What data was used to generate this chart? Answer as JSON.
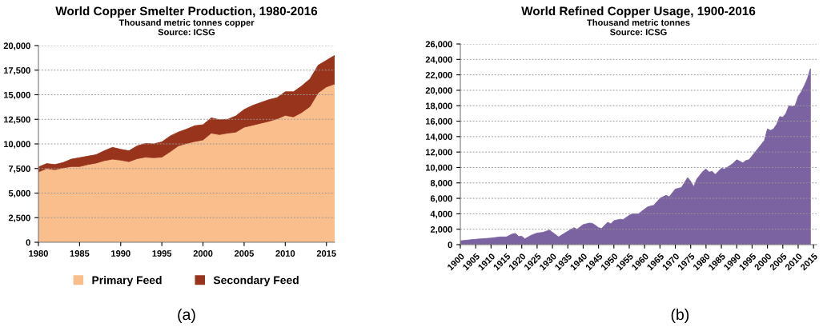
{
  "chart_data": [
    {
      "type": "area",
      "stacked": true,
      "title": "World Copper Smelter Production, 1980-2016",
      "subtitle": "Thousand metric tonnes copper\nSource: ICSG",
      "annotations": [
        "(a)"
      ],
      "x": [
        1980,
        1981,
        1982,
        1983,
        1984,
        1985,
        1986,
        1987,
        1988,
        1989,
        1990,
        1991,
        1992,
        1993,
        1994,
        1995,
        1996,
        1997,
        1998,
        1999,
        2000,
        2001,
        2002,
        2003,
        2004,
        2005,
        2006,
        2007,
        2008,
        2009,
        2010,
        2011,
        2012,
        2013,
        2014,
        2015,
        2016
      ],
      "series": [
        {
          "name": "Primary Feed",
          "color": "#f9be8c",
          "values": [
            7150,
            7500,
            7380,
            7570,
            7700,
            7700,
            7900,
            8050,
            8300,
            8450,
            8350,
            8200,
            8500,
            8650,
            8600,
            8650,
            9200,
            9800,
            10050,
            10250,
            10400,
            11100,
            10950,
            11100,
            11200,
            11700,
            11900,
            12100,
            12300,
            12550,
            12900,
            12750,
            13200,
            13800,
            15200,
            15800,
            16100
          ]
        },
        {
          "name": "Secondary Feed",
          "color": "#98331c",
          "values": [
            500,
            500,
            520,
            530,
            750,
            900,
            850,
            850,
            1000,
            1200,
            1100,
            1100,
            1300,
            1400,
            1400,
            1550,
            1600,
            1400,
            1450,
            1600,
            1550,
            1550,
            1500,
            1400,
            1650,
            1800,
            2000,
            2100,
            2200,
            2150,
            2400,
            2550,
            2700,
            2800,
            2800,
            2700,
            2900
          ]
        }
      ],
      "xlim": [
        1980,
        2016
      ],
      "xticks": [
        1980,
        1985,
        1990,
        1995,
        2000,
        2005,
        2010,
        2015
      ],
      "ylim": [
        0,
        20000
      ],
      "yticks": [
        {
          "value": 0,
          "label": "0"
        },
        {
          "value": 2500,
          "label": "2,500"
        },
        {
          "value": 5000,
          "label": "5,000"
        },
        {
          "value": 7500,
          "label": "7,500"
        },
        {
          "value": 10000,
          "label": "10,000"
        },
        {
          "value": 12500,
          "label": "12,500"
        },
        {
          "value": 15000,
          "label": "15,000"
        },
        {
          "value": 17500,
          "label": "17,500"
        },
        {
          "value": 20000,
          "label": "20,000"
        }
      ],
      "grid": "y",
      "legend": "bottom"
    },
    {
      "type": "area",
      "title": "World Refined Copper Usage, 1900-2016",
      "subtitle": "Thousand metric tonnes\nSource: ICSG",
      "annotations": [
        "(b)"
      ],
      "x": [
        1900,
        1905,
        1910,
        1913,
        1915,
        1917,
        1918,
        1919,
        1920,
        1921,
        1923,
        1925,
        1927,
        1929,
        1932,
        1934,
        1937,
        1938,
        1940,
        1942,
        1943,
        1944,
        1945,
        1946,
        1948,
        1949,
        1950,
        1952,
        1953,
        1955,
        1956,
        1958,
        1959,
        1961,
        1963,
        1965,
        1967,
        1968,
        1970,
        1972,
        1974,
        1975,
        1976,
        1977,
        1979,
        1980,
        1981,
        1982,
        1983,
        1985,
        1986,
        1988,
        1989,
        1990,
        1991,
        1992,
        1993,
        1994,
        1996,
        1998,
        1999,
        2000,
        2001,
        2002,
        2003,
        2004,
        2005,
        2006,
        2007,
        2008,
        2009,
        2010,
        2011,
        2012,
        2013,
        2014
      ],
      "series": [
        {
          "color": "#7b62a0",
          "values": [
            500,
            700,
            850,
            1000,
            1000,
            1400,
            1450,
            1050,
            1100,
            750,
            1200,
            1500,
            1600,
            1900,
            1000,
            1500,
            2200,
            2000,
            2600,
            2800,
            2750,
            2500,
            2200,
            2100,
            2900,
            2700,
            3100,
            3300,
            3250,
            3800,
            4000,
            4000,
            4300,
            4900,
            5100,
            6000,
            6400,
            6200,
            7200,
            7400,
            8700,
            8200,
            7500,
            8500,
            9500,
            9800,
            9400,
            9500,
            9100,
            9900,
            9800,
            10300,
            10600,
            11000,
            10800,
            10600,
            10900,
            11000,
            12000,
            13000,
            13500,
            15000,
            14800,
            15000,
            15600,
            16600,
            16500,
            17000,
            18000,
            17900,
            18000,
            19200,
            19800,
            20600,
            21500,
            22800
          ]
        }
      ],
      "xlim": [
        1900,
        2016
      ],
      "xticks": [
        1900,
        1905,
        1910,
        1915,
        1920,
        1925,
        1930,
        1935,
        1940,
        1945,
        1950,
        1955,
        1960,
        1965,
        1970,
        1975,
        1980,
        1985,
        1990,
        1995,
        2000,
        2005,
        2010,
        2015
      ],
      "ylim": [
        0,
        26000
      ],
      "yticks": [
        {
          "value": 0,
          "label": "0"
        },
        {
          "value": 2000,
          "label": "2,000"
        },
        {
          "value": 4000,
          "label": "4,000"
        },
        {
          "value": 6000,
          "label": "6,000"
        },
        {
          "value": 8000,
          "label": "8,000"
        },
        {
          "value": 10000,
          "label": "10,000"
        },
        {
          "value": 12000,
          "label": "12,000"
        },
        {
          "value": 14000,
          "label": "14,000"
        },
        {
          "value": 16000,
          "label": "16,000"
        },
        {
          "value": 18000,
          "label": "18,000"
        },
        {
          "value": 20000,
          "label": "20,000"
        },
        {
          "value": 22000,
          "label": "22,000"
        },
        {
          "value": 24000,
          "label": "24,000"
        },
        {
          "value": 26000,
          "label": "26,000"
        }
      ],
      "grid": "y"
    }
  ]
}
